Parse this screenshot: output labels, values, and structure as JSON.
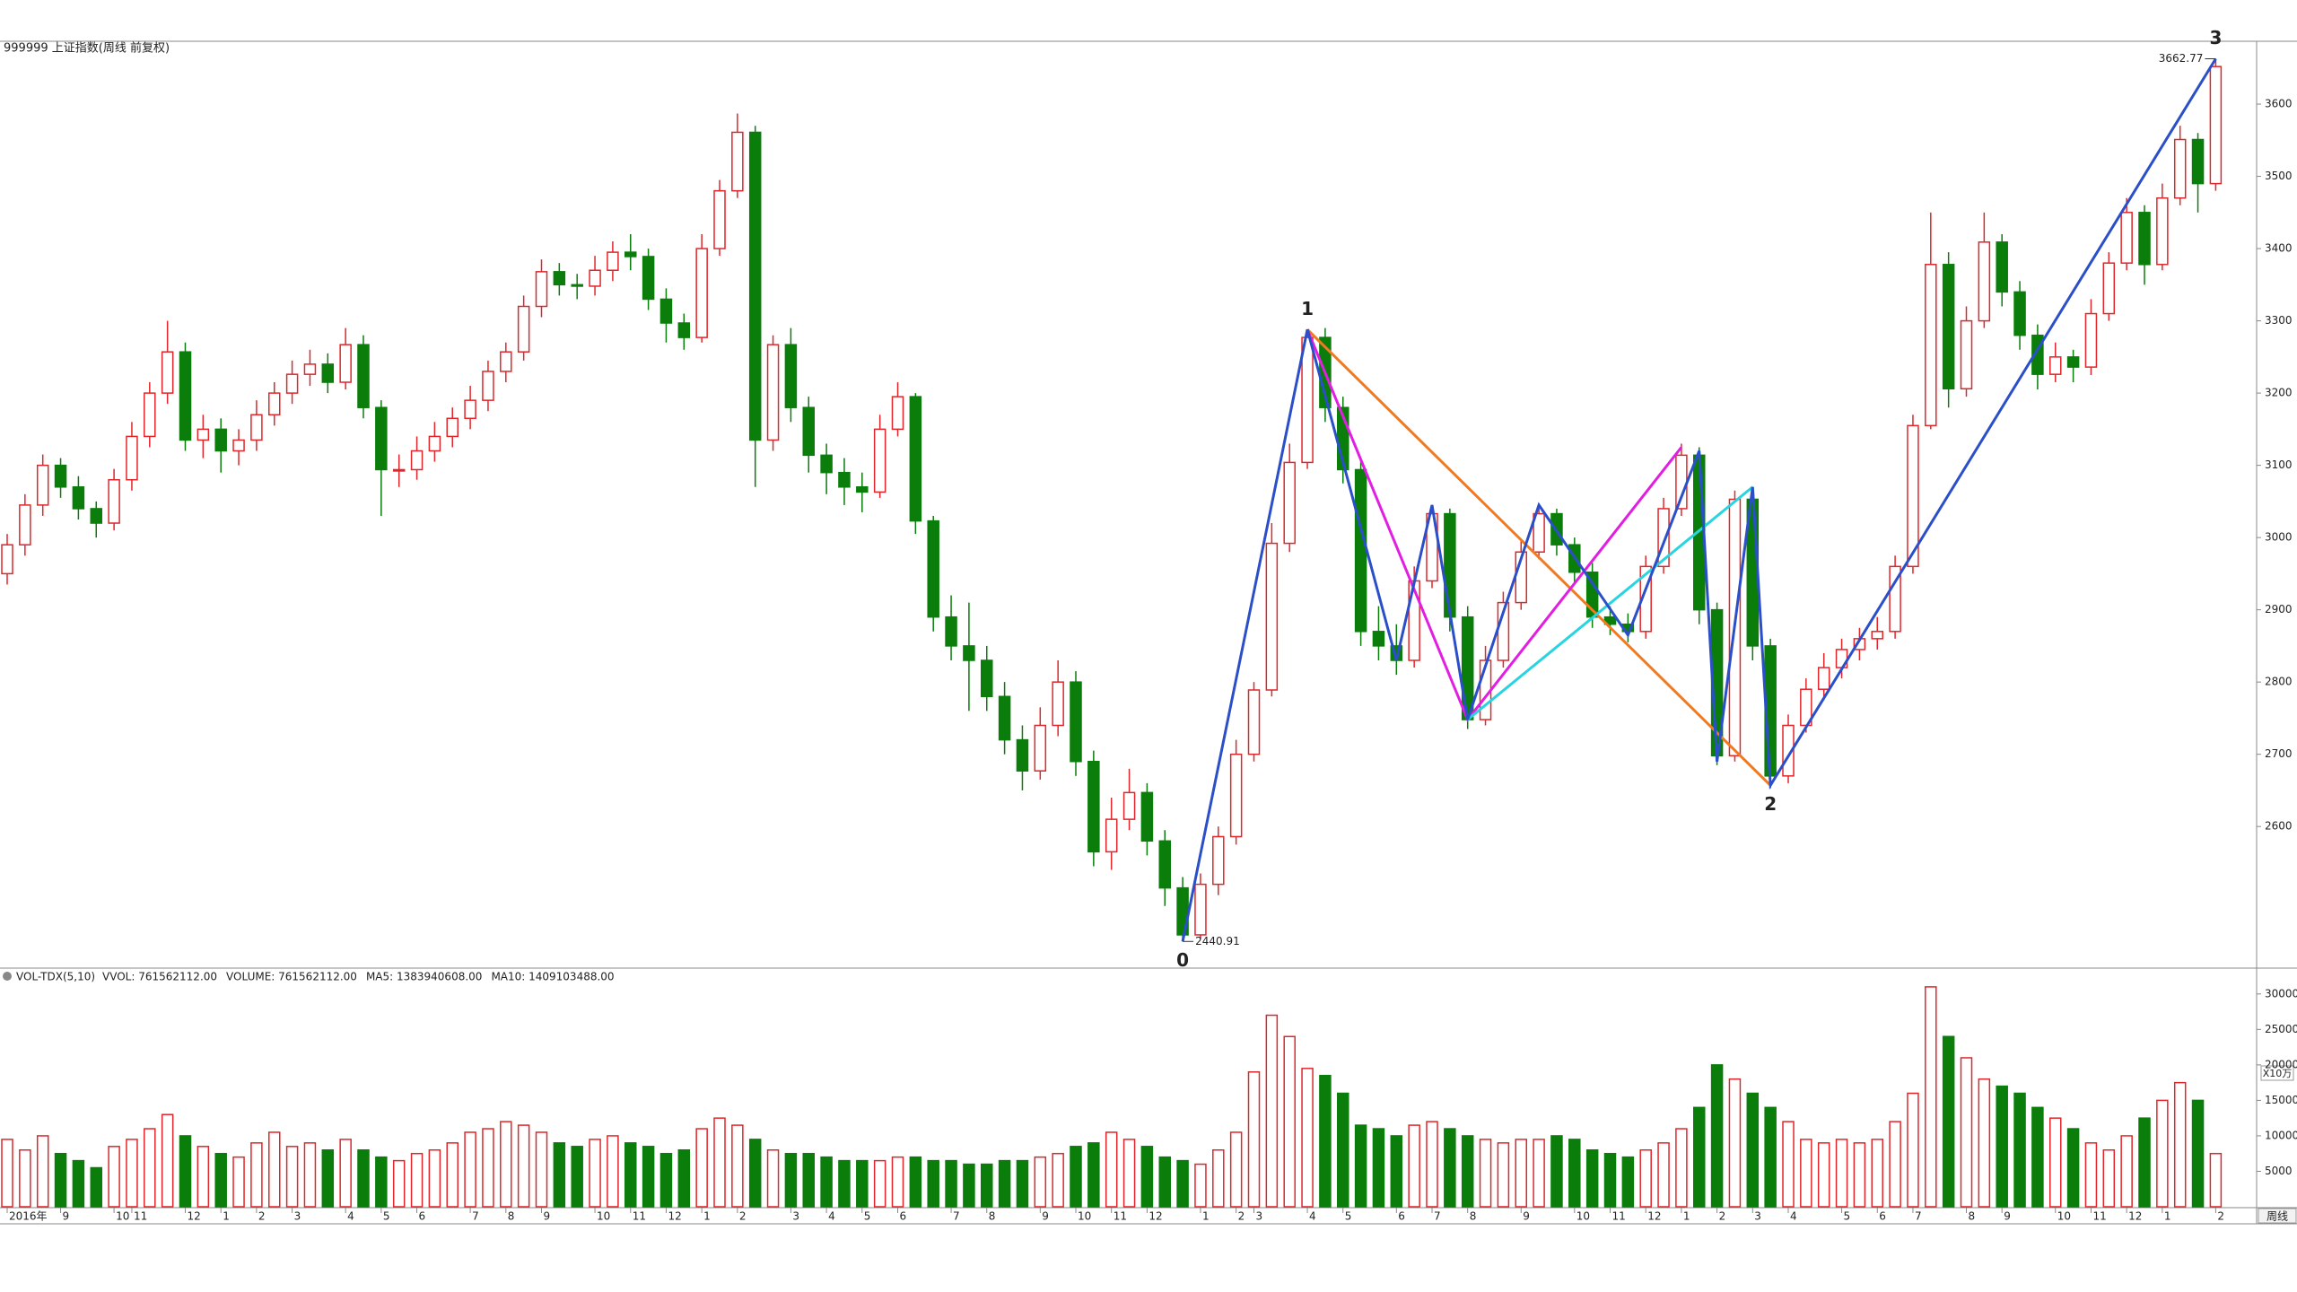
{
  "chart_data": [
    {
      "type": "candlestick",
      "title": "999999 上证指数(周线 前复权)",
      "up_color": "#e0262a",
      "down_color": "#0a7d0a",
      "ylim": [
        2404,
        3687
      ],
      "yticks": [
        2600,
        2700,
        2800,
        2900,
        3000,
        3100,
        3200,
        3300,
        3400,
        3500,
        3600
      ],
      "ohlc": [
        [
          2950,
          3005,
          2935,
          2990
        ],
        [
          2990,
          3060,
          2975,
          3045
        ],
        [
          3045,
          3115,
          3030,
          3100
        ],
        [
          3100,
          3110,
          3055,
          3070
        ],
        [
          3070,
          3085,
          3025,
          3040
        ],
        [
          3040,
          3050,
          3000,
          3020
        ],
        [
          3020,
          3095,
          3010,
          3080
        ],
        [
          3080,
          3160,
          3065,
          3140
        ],
        [
          3140,
          3215,
          3125,
          3200
        ],
        [
          3200,
          3300,
          3185,
          3257
        ],
        [
          3257,
          3270,
          3120,
          3135
        ],
        [
          3135,
          3170,
          3110,
          3150
        ],
        [
          3150,
          3165,
          3090,
          3120
        ],
        [
          3120,
          3150,
          3100,
          3135
        ],
        [
          3135,
          3190,
          3120,
          3170
        ],
        [
          3170,
          3215,
          3155,
          3200
        ],
        [
          3200,
          3245,
          3185,
          3226
        ],
        [
          3226,
          3260,
          3210,
          3240
        ],
        [
          3240,
          3255,
          3200,
          3215
        ],
        [
          3215,
          3290,
          3205,
          3267
        ],
        [
          3267,
          3280,
          3165,
          3180
        ],
        [
          3180,
          3190,
          3030,
          3094
        ],
        [
          3094,
          3115,
          3070,
          3094
        ],
        [
          3094,
          3140,
          3080,
          3120
        ],
        [
          3120,
          3160,
          3105,
          3140
        ],
        [
          3140,
          3180,
          3125,
          3165
        ],
        [
          3165,
          3210,
          3150,
          3190
        ],
        [
          3190,
          3245,
          3175,
          3230
        ],
        [
          3230,
          3270,
          3215,
          3257
        ],
        [
          3257,
          3335,
          3245,
          3320
        ],
        [
          3320,
          3385,
          3305,
          3368
        ],
        [
          3368,
          3380,
          3335,
          3350
        ],
        [
          3350,
          3365,
          3330,
          3348
        ],
        [
          3348,
          3390,
          3335,
          3370
        ],
        [
          3370,
          3410,
          3355,
          3395
        ],
        [
          3395,
          3420,
          3370,
          3389
        ],
        [
          3389,
          3400,
          3315,
          3330
        ],
        [
          3330,
          3345,
          3270,
          3297
        ],
        [
          3297,
          3310,
          3260,
          3277
        ],
        [
          3277,
          3420,
          3270,
          3400
        ],
        [
          3400,
          3495,
          3390,
          3480
        ],
        [
          3480,
          3587,
          3470,
          3561
        ],
        [
          3561,
          3570,
          3070,
          3135
        ],
        [
          3135,
          3280,
          3120,
          3267
        ],
        [
          3267,
          3290,
          3160,
          3180
        ],
        [
          3180,
          3195,
          3090,
          3114
        ],
        [
          3114,
          3130,
          3060,
          3090
        ],
        [
          3090,
          3110,
          3045,
          3070
        ],
        [
          3070,
          3090,
          3035,
          3063
        ],
        [
          3063,
          3170,
          3055,
          3150
        ],
        [
          3150,
          3215,
          3140,
          3195
        ],
        [
          3195,
          3200,
          3005,
          3023
        ],
        [
          3023,
          3030,
          2870,
          2890
        ],
        [
          2890,
          2920,
          2830,
          2850
        ],
        [
          2850,
          2910,
          2760,
          2830
        ],
        [
          2830,
          2850,
          2760,
          2780
        ],
        [
          2780,
          2800,
          2700,
          2720
        ],
        [
          2720,
          2740,
          2650,
          2677
        ],
        [
          2677,
          2765,
          2665,
          2740
        ],
        [
          2740,
          2830,
          2725,
          2800
        ],
        [
          2800,
          2815,
          2670,
          2690
        ],
        [
          2690,
          2705,
          2545,
          2565
        ],
        [
          2565,
          2640,
          2540,
          2610
        ],
        [
          2610,
          2680,
          2595,
          2647
        ],
        [
          2647,
          2660,
          2560,
          2580
        ],
        [
          2580,
          2595,
          2490,
          2515
        ],
        [
          2515,
          2530,
          2440.91,
          2450
        ],
        [
          2450,
          2535,
          2445,
          2520
        ],
        [
          2520,
          2600,
          2505,
          2586
        ],
        [
          2586,
          2720,
          2575,
          2700
        ],
        [
          2700,
          2800,
          2690,
          2789
        ],
        [
          2789,
          3020,
          2780,
          2992
        ],
        [
          2992,
          3130,
          2980,
          3104
        ],
        [
          3104,
          3288,
          3095,
          3277
        ],
        [
          3277,
          3290,
          3160,
          3180
        ],
        [
          3180,
          3195,
          3075,
          3094
        ],
        [
          3094,
          3110,
          2850,
          2870
        ],
        [
          2870,
          2905,
          2830,
          2850
        ],
        [
          2850,
          2880,
          2810,
          2830
        ],
        [
          2830,
          2960,
          2820,
          2940
        ],
        [
          2940,
          3045,
          2930,
          3033
        ],
        [
          3033,
          3040,
          2870,
          2890
        ],
        [
          2890,
          2905,
          2735,
          2748
        ],
        [
          2748,
          2850,
          2740,
          2830
        ],
        [
          2830,
          2925,
          2820,
          2910
        ],
        [
          2910,
          2995,
          2900,
          2980
        ],
        [
          2980,
          3045,
          2970,
          3033
        ],
        [
          3033,
          3040,
          2975,
          2990
        ],
        [
          2990,
          3000,
          2935,
          2952
        ],
        [
          2952,
          2965,
          2875,
          2890
        ],
        [
          2890,
          2905,
          2865,
          2880
        ],
        [
          2880,
          2895,
          2855,
          2870
        ],
        [
          2870,
          2975,
          2860,
          2960
        ],
        [
          2960,
          3055,
          2950,
          3040
        ],
        [
          3040,
          3130,
          3030,
          3114
        ],
        [
          3114,
          3125,
          2880,
          2900
        ],
        [
          2900,
          2910,
          2685,
          2698
        ],
        [
          2698,
          3065,
          2690,
          3053
        ],
        [
          3053,
          3060,
          2830,
          2850
        ],
        [
          2850,
          2860,
          2653,
          2670
        ],
        [
          2670,
          2755,
          2660,
          2740
        ],
        [
          2740,
          2805,
          2730,
          2790
        ],
        [
          2790,
          2840,
          2775,
          2820
        ],
        [
          2820,
          2860,
          2805,
          2845
        ],
        [
          2845,
          2875,
          2830,
          2860
        ],
        [
          2860,
          2890,
          2845,
          2870
        ],
        [
          2870,
          2975,
          2860,
          2960
        ],
        [
          2960,
          3170,
          2950,
          3155
        ],
        [
          3155,
          3450,
          3150,
          3378
        ],
        [
          3378,
          3395,
          3180,
          3206
        ],
        [
          3206,
          3320,
          3195,
          3300
        ],
        [
          3300,
          3450,
          3290,
          3409
        ],
        [
          3409,
          3420,
          3320,
          3340
        ],
        [
          3340,
          3355,
          3260,
          3280
        ],
        [
          3280,
          3295,
          3205,
          3226
        ],
        [
          3226,
          3270,
          3215,
          3250
        ],
        [
          3250,
          3260,
          3215,
          3236
        ],
        [
          3236,
          3330,
          3225,
          3310
        ],
        [
          3310,
          3395,
          3300,
          3380
        ],
        [
          3380,
          3470,
          3370,
          3450
        ],
        [
          3450,
          3460,
          3350,
          3378
        ],
        [
          3378,
          3490,
          3370,
          3470
        ],
        [
          3470,
          3570,
          3460,
          3551
        ],
        [
          3551,
          3560,
          3450,
          3490
        ],
        [
          3490,
          3662.77,
          3480,
          3652
        ]
      ],
      "drawings": [
        {
          "color": "#f07a22",
          "points": [
            [
              73,
              3288
            ],
            [
              99,
              2657
            ]
          ]
        },
        {
          "color": "#e21ee2",
          "points": [
            [
              73,
              3288
            ],
            [
              82,
              2748
            ],
            [
              94,
              3125
            ]
          ]
        },
        {
          "color": "#28d4e0",
          "points": [
            [
              82,
              2748
            ],
            [
              98,
              3070
            ]
          ]
        },
        {
          "color": "#2b4fc9",
          "points": [
            [
              66,
              2440.91
            ],
            [
              73,
              3288
            ],
            [
              78,
              2830
            ],
            [
              80,
              3045
            ],
            [
              82,
              2748
            ],
            [
              86,
              3045
            ],
            [
              91,
              2865
            ],
            [
              95,
              3120
            ],
            [
              96,
              2690
            ],
            [
              98,
              3070
            ],
            [
              99,
              2657
            ],
            [
              124,
              3662.77
            ]
          ]
        }
      ],
      "wave_labels": [
        {
          "text": "0",
          "x": 66,
          "y": 2440.91,
          "side": "below"
        },
        {
          "text": "1",
          "x": 73,
          "y": 3288,
          "side": "above"
        },
        {
          "text": "2",
          "x": 99,
          "y": 2657,
          "side": "below"
        },
        {
          "text": "3",
          "x": 124,
          "y": 3662.77,
          "side": "above"
        }
      ],
      "price_marks": [
        {
          "x": 66,
          "value": 2440.91,
          "side": "right"
        },
        {
          "x": 124,
          "value": 3662.77,
          "side": "left"
        }
      ]
    },
    {
      "type": "bar",
      "header": "VOL-TDX(5,10)",
      "indicators": [
        {
          "text": "VVOL: 761562112.00",
          "color": "#2d3ab8"
        },
        {
          "text": "VOLUME: 761562112.00",
          "color": "#e21ee2"
        },
        {
          "text": "MA5: 1383940608.00",
          "color": "#e21ee2"
        },
        {
          "text": "MA10: 1409103488.00",
          "color": "#777777"
        }
      ],
      "unit_label": "X10万",
      "period_label": "周线",
      "ylim": [
        0,
        32000
      ],
      "yticks": [
        5000,
        10000,
        15000,
        20000,
        25000,
        30000
      ],
      "categories": [
        "2016年",
        null,
        null,
        "9",
        null,
        null,
        "10",
        "11",
        null,
        null,
        "12",
        null,
        "1",
        null,
        "2",
        null,
        "3",
        null,
        null,
        "4",
        null,
        "5",
        null,
        "6",
        null,
        null,
        "7",
        null,
        "8",
        null,
        "9",
        null,
        null,
        "10",
        null,
        "11",
        null,
        "12",
        null,
        "1",
        null,
        "2",
        null,
        null,
        "3",
        null,
        "4",
        null,
        "5",
        null,
        "6",
        null,
        null,
        "7",
        null,
        "8",
        null,
        null,
        "9",
        null,
        "10",
        null,
        "11",
        null,
        "12",
        null,
        null,
        "1",
        null,
        "2",
        "3",
        null,
        null,
        "4",
        null,
        "5",
        null,
        null,
        "6",
        null,
        "7",
        null,
        "8",
        null,
        null,
        "9",
        null,
        null,
        "10",
        null,
        "11",
        null,
        "12",
        null,
        "1",
        null,
        "2",
        null,
        "3",
        null,
        "4",
        null,
        null,
        "5",
        null,
        "6",
        null,
        "7",
        null,
        null,
        "8",
        null,
        "9",
        null,
        null,
        "10",
        null,
        "11",
        null,
        "12",
        null,
        "1",
        null,
        null,
        "2"
      ],
      "values": [
        9500,
        8000,
        10000,
        7500,
        6500,
        5500,
        8500,
        9500,
        11000,
        13000,
        10000,
        8500,
        7500,
        7000,
        9000,
        10500,
        8500,
        9000,
        8000,
        9500,
        8000,
        7000,
        6500,
        7500,
        8000,
        9000,
        10500,
        11000,
        12000,
        11500,
        10500,
        9000,
        8500,
        9500,
        10000,
        9000,
        8500,
        7500,
        8000,
        11000,
        12500,
        11500,
        9500,
        8000,
        7500,
        7500,
        7000,
        6500,
        6500,
        6500,
        7000,
        7000,
        6500,
        6500,
        6000,
        6000,
        6500,
        6500,
        7000,
        7500,
        8500,
        9000,
        10500,
        9500,
        8500,
        7000,
        6500,
        6000,
        8000,
        10500,
        19000,
        27000,
        24000,
        19500,
        18500,
        16000,
        11500,
        11000,
        10000,
        11500,
        12000,
        11000,
        10000,
        9500,
        9000,
        9500,
        9500,
        10000,
        9500,
        8000,
        7500,
        7000,
        8000,
        9000,
        11000,
        14000,
        20000,
        18000,
        16000,
        14000,
        12000,
        9500,
        9000,
        9500,
        9000,
        9500,
        12000,
        16000,
        31000,
        24000,
        21000,
        18000,
        17000,
        16000,
        14000,
        12500,
        11000,
        9000,
        8000,
        10000,
        12500,
        15000,
        17500,
        15000,
        7500
      ]
    }
  ]
}
